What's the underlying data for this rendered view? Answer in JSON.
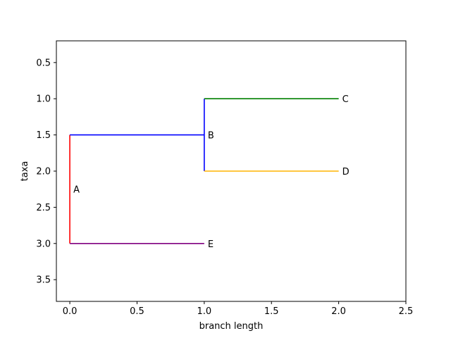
{
  "chart_data": {
    "type": "line",
    "title": "",
    "xlabel": "branch length",
    "ylabel": "taxa",
    "xlim": [
      -0.1,
      2.5
    ],
    "ylim": [
      3.8,
      0.2
    ],
    "y_inverted": true,
    "xticks": [
      0.0,
      0.5,
      1.0,
      1.5,
      2.0,
      2.5
    ],
    "xtick_labels": [
      "0.0",
      "0.5",
      "1.0",
      "1.5",
      "2.0",
      "2.5"
    ],
    "yticks": [
      0.5,
      1.0,
      1.5,
      2.0,
      2.5,
      3.0,
      3.5
    ],
    "ytick_labels": [
      "0.5",
      "1.0",
      "1.5",
      "2.0",
      "2.5",
      "3.0",
      "3.5"
    ],
    "grid": false,
    "legend": "none",
    "segments": [
      {
        "x": [
          0.0,
          0.0
        ],
        "y": [
          1.5,
          3.0
        ],
        "color": "#ff0000"
      },
      {
        "x": [
          0.0,
          1.0
        ],
        "y": [
          1.5,
          1.5
        ],
        "color": "#0000ff"
      },
      {
        "x": [
          1.0,
          1.0
        ],
        "y": [
          1.0,
          2.0
        ],
        "color": "#0000ff"
      },
      {
        "x": [
          1.0,
          2.0
        ],
        "y": [
          1.0,
          1.0
        ],
        "color": "#008000"
      },
      {
        "x": [
          1.0,
          2.0
        ],
        "y": [
          2.0,
          2.0
        ],
        "color": "#ffb300"
      },
      {
        "x": [
          0.0,
          1.0
        ],
        "y": [
          3.0,
          3.0
        ],
        "color": "#800080"
      }
    ],
    "node_labels": [
      {
        "text": "A",
        "x": 0.0,
        "y": 2.25
      },
      {
        "text": "B",
        "x": 1.0,
        "y": 1.5
      },
      {
        "text": "C",
        "x": 2.0,
        "y": 1.0
      },
      {
        "text": "D",
        "x": 2.0,
        "y": 2.0
      },
      {
        "text": "E",
        "x": 1.0,
        "y": 3.0
      }
    ]
  }
}
